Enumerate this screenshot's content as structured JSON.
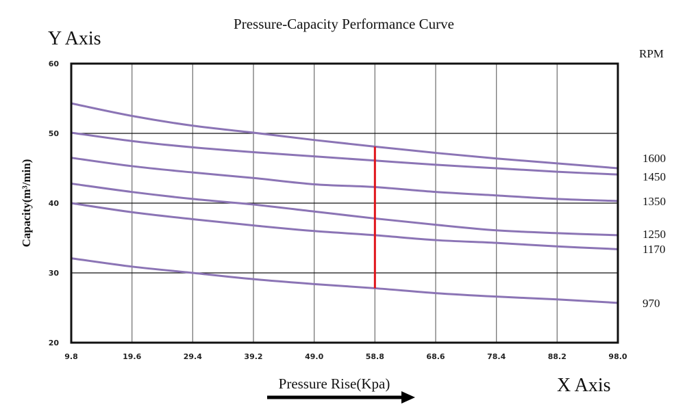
{
  "chart_data": {
    "type": "line",
    "title": "Pressure-Capacity Performance Curve",
    "y_axis_caption": "Y Axis",
    "x_axis_caption": "X Axis",
    "xlabel": "Pressure Rise(Kpa)",
    "ylabel": "Capacity(m³/min)",
    "legend_title": "RPM",
    "x": [
      9.8,
      19.6,
      29.4,
      39.2,
      49.0,
      58.8,
      68.6,
      78.4,
      88.2,
      98.0
    ],
    "x_tick_labels": [
      "9.8",
      "19.6",
      "29.4",
      "39.2",
      "49.0",
      "58.8",
      "68.6",
      "78.4",
      "88.2",
      "98.0"
    ],
    "y_tick_labels": [
      "20",
      "30",
      "40",
      "50",
      "60"
    ],
    "xlim": [
      9.8,
      98.0
    ],
    "ylim": [
      20,
      60
    ],
    "grid": true,
    "legend_placement": "right",
    "series_color": "#8b74b5",
    "marker_color": "#e0141b",
    "series": [
      {
        "name": "1600",
        "values": [
          54.3,
          52.5,
          51.1,
          50.1,
          49.05,
          48.1,
          47.2,
          46.4,
          45.7,
          45.0
        ]
      },
      {
        "name": "1450",
        "values": [
          50.1,
          48.9,
          48.0,
          47.3,
          46.7,
          46.1,
          45.5,
          45.0,
          44.5,
          44.1
        ]
      },
      {
        "name": "1350",
        "values": [
          46.5,
          45.3,
          44.4,
          43.6,
          42.7,
          42.3,
          41.6,
          41.1,
          40.6,
          40.3
        ]
      },
      {
        "name": "1250",
        "values": [
          42.8,
          41.6,
          40.6,
          39.8,
          38.8,
          37.8,
          36.9,
          36.1,
          35.7,
          35.4
        ]
      },
      {
        "name": "1170",
        "values": [
          40.0,
          38.7,
          37.7,
          36.8,
          36.0,
          35.4,
          34.7,
          34.3,
          33.8,
          33.4
        ]
      },
      {
        "name": "970",
        "values": [
          32.1,
          30.9,
          30.0,
          29.1,
          28.4,
          27.8,
          27.1,
          26.6,
          26.2,
          25.7
        ]
      }
    ],
    "marker_line": {
      "x": 58.8,
      "y_from": 27.8,
      "y_to": 48.1
    }
  }
}
